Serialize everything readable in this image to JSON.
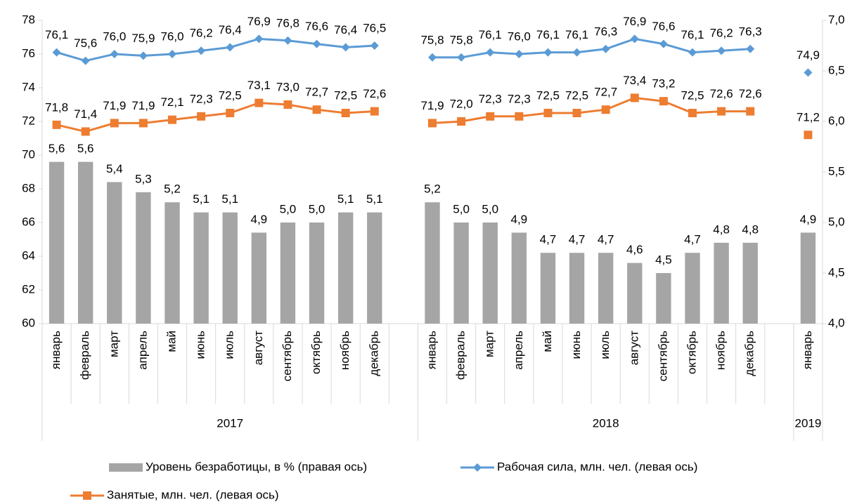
{
  "chart_data": {
    "type": "bar-line",
    "categories": [
      "январь",
      "февраль",
      "март",
      "апрель",
      "май",
      "июнь",
      "июль",
      "август",
      "сентябрь",
      "октябрь",
      "ноябрь",
      "декабрь",
      null,
      "январь",
      "февраль",
      "март",
      "апрель",
      "май",
      "июнь",
      "июль",
      "август",
      "сентябрь",
      "октябрь",
      "ноябрь",
      "декабрь",
      null,
      "январь"
    ],
    "groups": [
      {
        "name": "2017",
        "span": 13
      },
      {
        "name": "2018",
        "span": 13
      },
      {
        "name": "2019",
        "span": 1
      }
    ],
    "ylim": [
      60,
      78
    ],
    "yticks": [
      60,
      62,
      64,
      66,
      68,
      70,
      72,
      74,
      76,
      78
    ],
    "y2lim": [
      4,
      7
    ],
    "y2ticks": [
      {
        "value": 4,
        "label": "4,0"
      },
      {
        "value": 4.5,
        "label": "4,5"
      },
      {
        "value": 5,
        "label": "5,0"
      },
      {
        "value": 5.5,
        "label": "5,5"
      },
      {
        "value": 6,
        "label": "6,0"
      },
      {
        "value": 6.5,
        "label": "6,5"
      },
      {
        "value": 7,
        "label": "7,0"
      }
    ],
    "series": [
      {
        "name": "Уровень безработицы, в % (правая ось)",
        "type": "bar",
        "axis": "y2",
        "color": "#a5a5a5",
        "values": [
          5.6,
          5.6,
          5.4,
          5.3,
          5.2,
          5.1,
          5.1,
          4.9,
          5.0,
          5.0,
          5.1,
          5.1,
          null,
          5.2,
          5.0,
          5.0,
          4.9,
          4.7,
          4.7,
          4.7,
          4.6,
          4.5,
          4.7,
          4.8,
          4.8,
          null,
          4.9
        ],
        "value_labels": [
          "5,6",
          "5,6",
          "5,4",
          "5,3",
          "5,2",
          "5,1",
          "5,1",
          "4,9",
          "5,0",
          "5,0",
          "5,1",
          "5,1",
          null,
          "5,2",
          "5,0",
          "5,0",
          "4,9",
          "4,7",
          "4,7",
          "4,7",
          "4,6",
          "4,5",
          "4,7",
          "4,8",
          "4,8",
          null,
          "4,9"
        ]
      },
      {
        "name": "Рабочая сила, млн. чел. (левая ось)",
        "type": "line",
        "marker": "diamond",
        "color": "#5b9bd5",
        "values": [
          76.1,
          75.6,
          76.0,
          75.9,
          76.0,
          76.2,
          76.4,
          76.9,
          76.8,
          76.6,
          76.4,
          76.5,
          null,
          75.8,
          75.8,
          76.1,
          76.0,
          76.1,
          76.1,
          76.3,
          76.9,
          76.6,
          76.1,
          76.2,
          76.3,
          null,
          74.9
        ],
        "value_labels": [
          "76,1",
          "75,6",
          "76,0",
          "75,9",
          "76,0",
          "76,2",
          "76,4",
          "76,9",
          "76,8",
          "76,6",
          "76,4",
          "76,5",
          null,
          "75,8",
          "75,8",
          "76,1",
          "76,0",
          "76,1",
          "76,1",
          "76,3",
          "76,9",
          "76,6",
          "76,1",
          "76,2",
          "76,3",
          null,
          "74,9"
        ]
      },
      {
        "name": "Занятые, млн. чел. (левая ось)",
        "type": "line",
        "marker": "square",
        "color": "#ed7d31",
        "values": [
          71.8,
          71.4,
          71.9,
          71.9,
          72.1,
          72.3,
          72.5,
          73.1,
          73.0,
          72.7,
          72.5,
          72.6,
          null,
          71.9,
          72.0,
          72.3,
          72.3,
          72.5,
          72.5,
          72.7,
          73.4,
          73.2,
          72.5,
          72.6,
          72.6,
          null,
          71.2
        ],
        "value_labels": [
          "71,8",
          "71,4",
          "71,9",
          "71,9",
          "72,1",
          "72,3",
          "72,5",
          "73,1",
          "73,0",
          "72,7",
          "72,5",
          "72,6",
          null,
          "71,9",
          "72,0",
          "72,3",
          "72,3",
          "72,5",
          "72,5",
          "72,7",
          "73,4",
          "73,2",
          "72,5",
          "72,6",
          "72,6",
          null,
          "71,2"
        ]
      }
    ]
  }
}
